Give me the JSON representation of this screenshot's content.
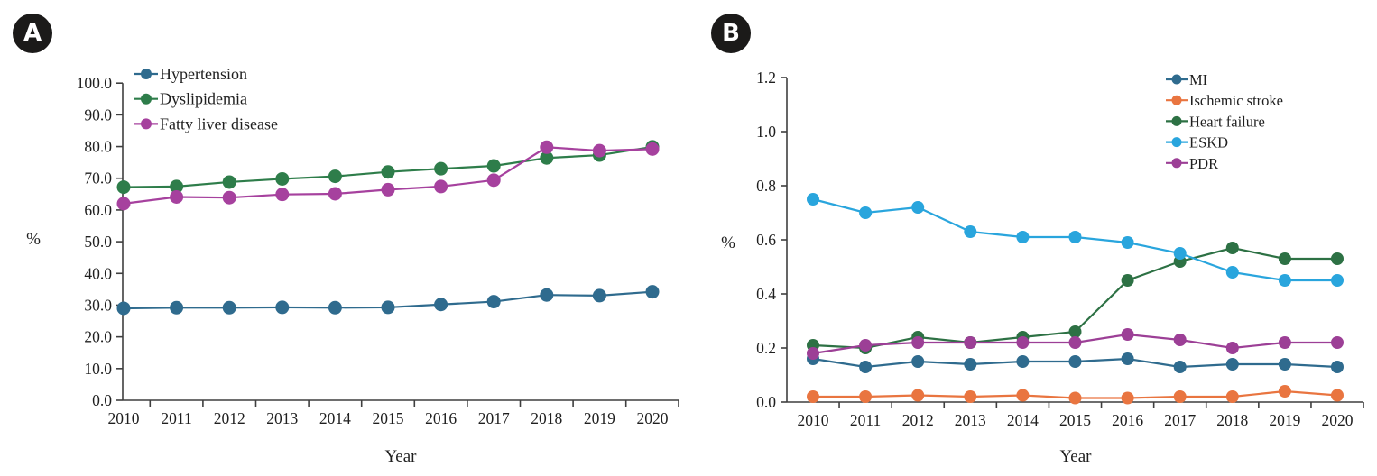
{
  "figure": {
    "panels": [
      {
        "badge": "A",
        "ylabel": "%",
        "xlabel": "Year"
      },
      {
        "badge": "B",
        "ylabel": "%",
        "xlabel": "Year"
      }
    ]
  },
  "chart_data": [
    {
      "type": "line",
      "title": "",
      "xlabel": "Year",
      "ylabel": "%",
      "x": [
        2010,
        2011,
        2012,
        2013,
        2014,
        2015,
        2016,
        2017,
        2018,
        2019,
        2020
      ],
      "ylim": [
        0,
        100
      ],
      "ytick_step": 10,
      "ytick_decimals": 1,
      "grid": false,
      "legend_position": "top-left-inside",
      "series": [
        {
          "name": "Hypertension",
          "color": "#2f6b8e",
          "values": [
            29.0,
            29.2,
            29.2,
            29.3,
            29.2,
            29.3,
            30.2,
            31.1,
            33.2,
            33.0,
            34.2
          ]
        },
        {
          "name": "Dyslipidemia",
          "color": "#2e7d4a",
          "values": [
            67.2,
            67.4,
            68.8,
            69.8,
            70.6,
            72.0,
            73.0,
            73.9,
            76.4,
            77.3,
            79.9
          ]
        },
        {
          "name": "Fatty liver disease",
          "color": "#a6419e",
          "values": [
            62.0,
            64.1,
            63.9,
            64.9,
            65.1,
            66.4,
            67.4,
            69.4,
            79.8,
            78.7,
            79.2
          ]
        }
      ]
    },
    {
      "type": "line",
      "title": "",
      "xlabel": "Year",
      "ylabel": "%",
      "x": [
        2010,
        2011,
        2012,
        2013,
        2014,
        2015,
        2016,
        2017,
        2018,
        2019,
        2020
      ],
      "ylim": [
        0,
        1.2
      ],
      "ytick_step": 0.2,
      "ytick_decimals": 1,
      "grid": false,
      "legend_position": "top-right-inside",
      "series": [
        {
          "name": "MI",
          "color": "#2f6b8e",
          "values": [
            0.16,
            0.13,
            0.15,
            0.14,
            0.15,
            0.15,
            0.16,
            0.13,
            0.14,
            0.14,
            0.13
          ]
        },
        {
          "name": "Ischemic stroke",
          "color": "#e97540",
          "values": [
            0.02,
            0.02,
            0.025,
            0.02,
            0.025,
            0.015,
            0.015,
            0.02,
            0.02,
            0.04,
            0.025
          ]
        },
        {
          "name": "Heart failure",
          "color": "#2d7144",
          "values": [
            0.21,
            0.2,
            0.24,
            0.22,
            0.24,
            0.26,
            0.45,
            0.52,
            0.57,
            0.53,
            0.53
          ]
        },
        {
          "name": "ESKD",
          "color": "#29a5dd",
          "values": [
            0.75,
            0.7,
            0.72,
            0.63,
            0.61,
            0.61,
            0.59,
            0.55,
            0.48,
            0.45,
            0.45
          ]
        },
        {
          "name": "PDR",
          "color": "#9c3f96",
          "values": [
            0.18,
            0.21,
            0.22,
            0.22,
            0.22,
            0.22,
            0.25,
            0.23,
            0.2,
            0.22,
            0.22
          ]
        }
      ]
    }
  ]
}
